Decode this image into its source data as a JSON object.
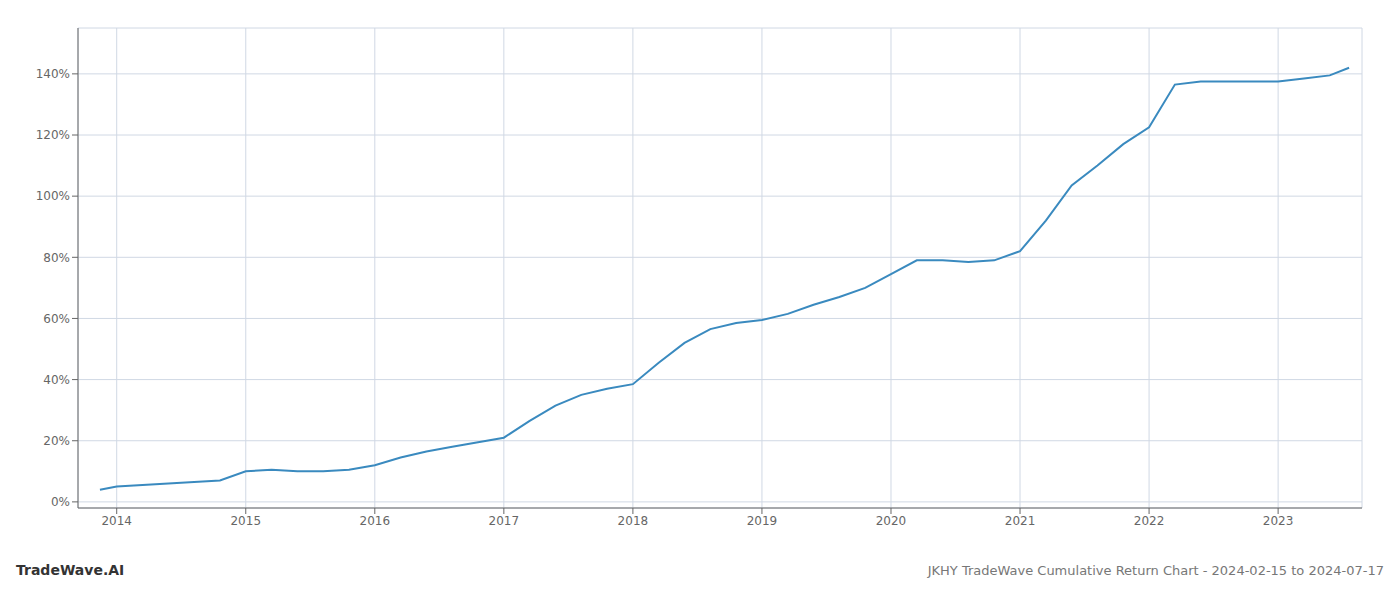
{
  "chart_data": {
    "type": "line",
    "title": "JKHY TradeWave Cumulative Return Chart - 2024-02-15 to 2024-07-17",
    "annotations": [
      "TradeWave.AI"
    ],
    "color": "#3a8abf",
    "grid": true,
    "x": [
      2013.87,
      2014.0,
      2014.2,
      2014.4,
      2014.6,
      2014.8,
      2015.0,
      2015.2,
      2015.4,
      2015.6,
      2015.8,
      2016.0,
      2016.2,
      2016.4,
      2016.6,
      2016.8,
      2017.0,
      2017.2,
      2017.4,
      2017.6,
      2017.8,
      2018.0,
      2018.2,
      2018.4,
      2018.6,
      2018.8,
      2019.0,
      2019.2,
      2019.4,
      2019.6,
      2019.8,
      2020.0,
      2020.2,
      2020.4,
      2020.6,
      2020.8,
      2021.0,
      2021.2,
      2021.4,
      2021.6,
      2021.8,
      2022.0,
      2022.2,
      2022.4,
      2022.6,
      2022.8,
      2023.0,
      2023.2,
      2023.4,
      2023.55
    ],
    "values": [
      0.04,
      0.05,
      0.055,
      0.06,
      0.065,
      0.07,
      0.1,
      0.105,
      0.1,
      0.1,
      0.105,
      0.12,
      0.145,
      0.165,
      0.18,
      0.195,
      0.21,
      0.265,
      0.315,
      0.35,
      0.37,
      0.385,
      0.455,
      0.52,
      0.565,
      0.585,
      0.595,
      0.615,
      0.645,
      0.67,
      0.7,
      0.745,
      0.79,
      0.79,
      0.785,
      0.79,
      0.82,
      0.92,
      1.035,
      1.1,
      1.17,
      1.225,
      1.365,
      1.375,
      1.375,
      1.375,
      1.375,
      1.385,
      1.395,
      1.42
    ],
    "xlim": [
      2013.7,
      2023.65
    ],
    "xticks": [
      2014,
      2015,
      2016,
      2017,
      2018,
      2019,
      2020,
      2021,
      2022,
      2023
    ],
    "ylim": [
      -0.02,
      1.55
    ],
    "yticks": [
      {
        "value": 0.0,
        "label": "0%"
      },
      {
        "value": 0.2,
        "label": "20%"
      },
      {
        "value": 0.4,
        "label": "40%"
      },
      {
        "value": 0.6,
        "label": "60%"
      },
      {
        "value": 0.8,
        "label": "80%"
      },
      {
        "value": 1.0,
        "label": "100%"
      },
      {
        "value": 1.2,
        "label": "120%"
      },
      {
        "value": 1.4,
        "label": "140%"
      }
    ]
  }
}
